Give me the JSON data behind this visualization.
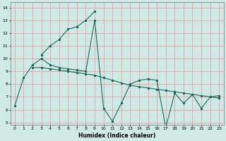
{
  "xlabel": "Humidex (Indice chaleur)",
  "xlim": [
    -0.5,
    23.5
  ],
  "ylim": [
    4.8,
    14.4
  ],
  "xticks": [
    0,
    1,
    2,
    3,
    4,
    5,
    6,
    7,
    8,
    9,
    10,
    11,
    12,
    13,
    14,
    15,
    16,
    17,
    18,
    19,
    20,
    21,
    22,
    23
  ],
  "yticks": [
    5,
    6,
    7,
    8,
    9,
    10,
    11,
    12,
    13,
    14
  ],
  "bg_color": "#cfe9e5",
  "grid_color": "#e8a0a0",
  "line_color": "#1a6b5a",
  "line1_x": [
    0,
    1,
    2,
    3,
    4,
    5,
    6,
    7,
    8,
    9,
    10,
    11,
    12,
    13,
    14,
    15,
    16,
    17,
    18,
    19,
    20,
    21,
    22,
    23
  ],
  "line1_y": [
    6.3,
    8.5,
    9.5,
    10.0,
    9.5,
    9.3,
    9.2,
    9.1,
    9.0,
    13.0,
    6.1,
    5.1,
    6.5,
    8.0,
    8.3,
    8.4,
    8.3,
    4.6,
    7.3,
    6.5,
    7.2,
    6.1,
    7.0,
    7.1
  ],
  "line2_x": [
    3,
    4,
    5,
    6,
    7,
    8,
    9
  ],
  "line2_y": [
    10.3,
    11.0,
    11.5,
    12.3,
    12.5,
    13.0,
    13.7
  ],
  "line3_x": [
    2,
    3,
    4,
    5,
    6,
    7,
    8,
    9,
    10,
    11,
    12,
    13,
    14,
    15,
    16,
    17,
    18,
    19,
    20,
    21,
    22,
    23
  ],
  "line3_y": [
    9.3,
    9.3,
    9.2,
    9.1,
    9.0,
    8.9,
    8.8,
    8.7,
    8.5,
    8.3,
    8.1,
    7.9,
    7.8,
    7.7,
    7.6,
    7.5,
    7.4,
    7.3,
    7.2,
    7.1,
    7.0,
    6.9
  ]
}
